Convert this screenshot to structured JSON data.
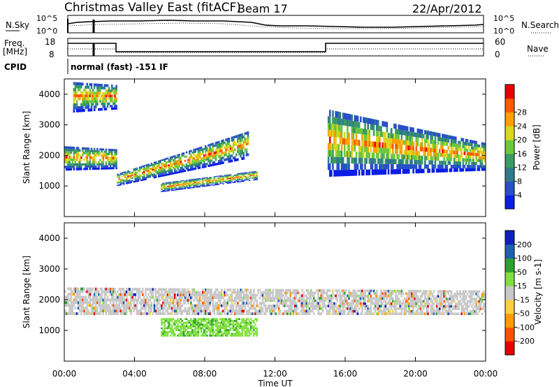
{
  "header": {
    "title": "Christmas Valley East (fitACF)",
    "beam": "Beam 17",
    "date": "22/Apr/2012"
  },
  "noise_panel": {
    "left_label": "N.Sky",
    "right_label": "N.Search",
    "left_ticks": [
      "10^5",
      "10^0"
    ],
    "right_ticks": [
      "10^5",
      "10^0"
    ]
  },
  "freq_panel": {
    "left_label_line1": "Freq.",
    "left_label_line2": "[MHz]",
    "right_label": "Nave",
    "left_ticks": [
      "18",
      "8"
    ],
    "right_ticks": [
      "60",
      "0"
    ]
  },
  "cpid": {
    "label": "CPID",
    "value": "normal (fast) -151 IF"
  },
  "chart_data": [
    {
      "type": "heatmap",
      "title": "",
      "ylabel": "Slant Range [km]",
      "yticks": [
        "1000",
        "2000",
        "3000",
        "4000"
      ],
      "ylim": [
        0,
        4500
      ],
      "xlim_hours": [
        0,
        24
      ],
      "colorbar_label": "Power [dB]",
      "colorbar_ticks": [
        "4",
        "8",
        "12",
        "16",
        "20",
        "24",
        "28"
      ],
      "colorbar_colors": [
        "#0a1ee6",
        "#2850c8",
        "#2f7a8a",
        "#3a9a62",
        "#6cc83c",
        "#d8d820",
        "#ffa000",
        "#ff5a00",
        "#e80000"
      ],
      "echo_regions": [
        {
          "name": "band-morning",
          "t": [
            0,
            3
          ],
          "r_low": [
            1500,
            1550
          ],
          "r_high": [
            2300,
            2200
          ]
        },
        {
          "name": "band-main",
          "t": [
            3,
            10.5
          ],
          "r_low": [
            1000,
            1900
          ],
          "r_high": [
            1400,
            2800
          ]
        },
        {
          "name": "band-lower",
          "t": [
            5.5,
            11
          ],
          "r_low": [
            800,
            1200
          ],
          "r_high": [
            1100,
            1500
          ]
        },
        {
          "name": "band-evening",
          "t": [
            15,
            24
          ],
          "r_low": [
            1300,
            1500
          ],
          "r_high": [
            3500,
            2400
          ]
        },
        {
          "name": "band-far",
          "t": [
            0.5,
            3
          ],
          "r_low": [
            3400,
            3500
          ],
          "r_high": [
            4400,
            4300
          ]
        }
      ]
    },
    {
      "type": "heatmap",
      "title": "",
      "xlabel": "Time UT",
      "ylabel": "Slant Range [km]",
      "yticks": [
        "1000",
        "2000",
        "3000",
        "4000"
      ],
      "xticks": [
        "00:00",
        "04:00",
        "08:00",
        "12:00",
        "16:00",
        "20:00",
        "00:00"
      ],
      "ylim": [
        0,
        4500
      ],
      "xlim_hours": [
        0,
        24
      ],
      "colorbar_label": "Velocity [m s-1]",
      "colorbar_ticks": [
        "-200",
        "-100",
        "-50",
        "-15",
        "15",
        "50",
        "100",
        "200"
      ],
      "colorbar_colors": [
        "#e60000",
        "#ff5000",
        "#ff9a00",
        "#ffd040",
        "#c8c8c8",
        "#80e040",
        "#30a030",
        "#2060b0",
        "#1020c0"
      ],
      "echo_regions": [
        {
          "name": "ground-scatter-main",
          "t": [
            0,
            24
          ],
          "r_low": [
            1500,
            1500
          ],
          "r_high": [
            2400,
            2300
          ]
        },
        {
          "name": "green-patch",
          "t": [
            5.5,
            11
          ],
          "r_low": [
            800,
            800
          ],
          "r_high": [
            1400,
            1400
          ]
        }
      ]
    }
  ]
}
